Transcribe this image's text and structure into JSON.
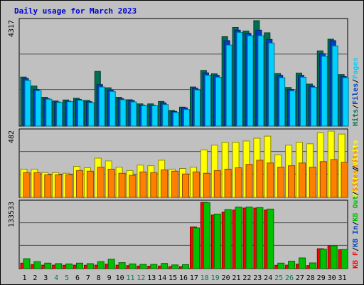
{
  "title": "Daily usage for March 2023",
  "chart_data": {
    "type": "bar",
    "title": "Daily usage for March 2023",
    "categories": [
      "1",
      "2",
      "3",
      "4",
      "5",
      "6",
      "7",
      "8",
      "9",
      "10",
      "11",
      "12",
      "13",
      "14",
      "15",
      "16",
      "17",
      "18",
      "19",
      "20",
      "21",
      "22",
      "23",
      "24",
      "25",
      "26",
      "27",
      "28",
      "29",
      "30",
      "31"
    ],
    "weekend_days": [
      "4",
      "5",
      "11",
      "12",
      "18",
      "19",
      "25",
      "26"
    ],
    "colors": {
      "hits": "#007050",
      "files": "#0040c0",
      "pages": "#00d0ff",
      "visits": "#ffff00",
      "sites": "#ff8000",
      "kb_in": "#00c000",
      "kb_out": "#ff0000",
      "weekday_label": "#000000",
      "weekend_label": "#00804a",
      "plot_bg": "#c0c0c0",
      "grid": "#505050"
    },
    "panels": [
      {
        "name": "hits-files-pages",
        "ymax": 4317,
        "ymax_label": "4317",
        "legend": [
          {
            "label": "Hits",
            "color": "#007050"
          },
          {
            "label": "/",
            "color": "#000000"
          },
          {
            "label": "Files",
            "color": "#0040c0"
          },
          {
            "label": "/",
            "color": "#000000"
          },
          {
            "label": "Pages",
            "color": "#00d0ff"
          }
        ],
        "series": [
          {
            "name": "Hits",
            "values": [
              2008,
              1640,
              1180,
              1030,
              1070,
              1140,
              1050,
              2240,
              1570,
              1180,
              1080,
              910,
              910,
              1010,
              640,
              780,
              1600,
              2280,
              2140,
              3660,
              4040,
              3890,
              4317,
              3820,
              2150,
              1580,
              2170,
              1720,
              3080,
              3560,
              2110
            ]
          },
          {
            "name": "Files",
            "values": [
              1950,
              1500,
              1120,
              990,
              1020,
              1090,
              1000,
              1700,
              1480,
              1120,
              1050,
              860,
              850,
              950,
              600,
              750,
              1550,
              2180,
              2080,
              3500,
              3930,
              3800,
              3930,
              3550,
              2080,
              1500,
              2080,
              1640,
              2960,
              3500,
              2030
            ]
          },
          {
            "name": "Pages",
            "values": [
              1870,
              1450,
              1100,
              970,
              1000,
              1060,
              960,
              1600,
              1420,
              1080,
              990,
              840,
              830,
              880,
              560,
              680,
              1480,
              2080,
              2000,
              3320,
              3840,
              3700,
              3700,
              3400,
              1980,
              1440,
              2000,
              1590,
              2860,
              3280,
              1980
            ]
          }
        ]
      },
      {
        "name": "visits-sites",
        "ymax": 482,
        "ymax_label": "482",
        "legend": [
          {
            "label": "Visits",
            "color": "#ffff00"
          },
          {
            "label": "/",
            "color": "#000000"
          },
          {
            "label": "Sites",
            "color": "#ff8000"
          }
        ],
        "series": [
          {
            "name": "Visits",
            "values": [
              205,
              205,
              180,
              180,
              175,
              225,
              215,
              285,
              265,
              220,
              195,
              235,
              230,
              270,
              205,
              210,
              220,
              345,
              380,
              400,
              400,
              410,
              430,
              445,
              310,
              380,
              400,
              390,
              470,
              482,
              460
            ]
          },
          {
            "name": "Sites",
            "values": [
              180,
              180,
              165,
              165,
              165,
              195,
              190,
              220,
              205,
              175,
              160,
              185,
              180,
              200,
              190,
              170,
              185,
              175,
              195,
              205,
              215,
              240,
              270,
              250,
              220,
              230,
              250,
              220,
              260,
              275,
              255
            ]
          }
        ]
      },
      {
        "name": "kbin-kbout",
        "ymax": 133533,
        "ymax_label": "133533",
        "legend": [
          {
            "label": "KB F",
            "color": "#ff0000"
          },
          {
            "label": "/",
            "color": "#000000"
          },
          {
            "label": "KB In",
            "color": "#0040c0"
          },
          {
            "label": "/",
            "color": "#000000"
          },
          {
            "label": "KB Out",
            "color": "#00c000"
          },
          {
            "label": "/",
            "color": "#000000"
          },
          {
            "label": "Sites",
            "color": "#ff8000"
          },
          {
            "label": "/",
            "color": "#000000"
          },
          {
            "label": "Visits",
            "color": "#ffff00"
          }
        ],
        "series": [
          {
            "name": "KB F",
            "values": [
              11000,
              8200,
              7000,
              7000,
              6800,
              7000,
              6800,
              7000,
              9000,
              7000,
              6000,
              5200,
              5000,
              5200,
              4000,
              4000,
              84000,
              133533,
              108000,
              114000,
              118000,
              122000,
              122000,
              118000,
              6800,
              7000,
              9000,
              6200,
              40000,
              46000,
              38000
            ]
          },
          {
            "name": "KB In",
            "values": [
              20000,
              14000,
              11000,
              10000,
              9500,
              11000,
              10000,
              14000,
              19000,
              12000,
              9500,
              8500,
              8500,
              10500,
              7500,
              8000,
              82000,
              133000,
              110000,
              119000,
              124000,
              124000,
              123000,
              120000,
              11000,
              15000,
              21500,
              11500,
              39000,
              46000,
              38500
            ]
          }
        ]
      }
    ]
  }
}
